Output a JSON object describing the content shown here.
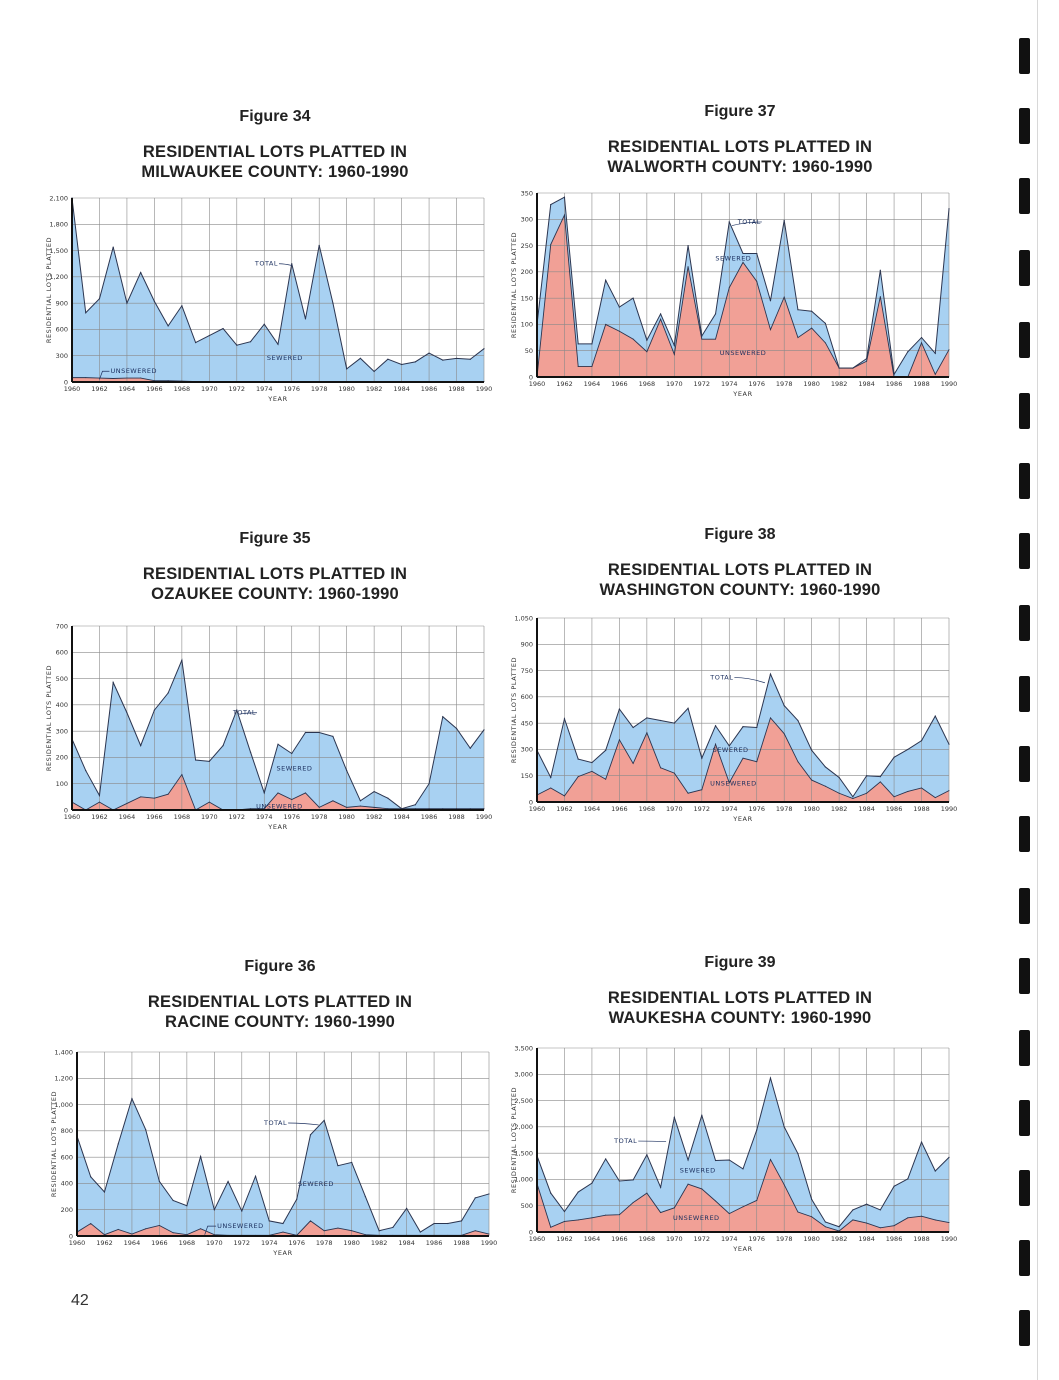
{
  "page": {
    "page_number": "42"
  },
  "colors": {
    "sewered": "#a8d1f2",
    "unsewered": "#f1a096",
    "line": "#2b3550",
    "grid": "#8a8a8a",
    "annotation": "#1b2f5e"
  },
  "chart_data": [
    {
      "id": "fig34",
      "figure_label": "Figure 34",
      "title_line1": "RESIDENTIAL LOTS PLATTED IN",
      "title_line2": "MILWAUKEE COUNTY: 1960-1990",
      "type": "area",
      "xlabel": "YEAR",
      "ylabel": "RESIDENTIAL LOTS PLATTED",
      "ylim": [
        0,
        2100
      ],
      "yticks": [
        "0",
        "300",
        "600",
        "900",
        "1,200",
        "1,500",
        "1,800",
        "2,100"
      ],
      "xticks": [
        "1960",
        "1962",
        "1964",
        "1966",
        "1968",
        "1970",
        "1972",
        "1974",
        "1976",
        "1978",
        "1980",
        "1982",
        "1984",
        "1986",
        "1988",
        "1990"
      ],
      "grid": true,
      "x": [
        1960,
        1961,
        1962,
        1963,
        1964,
        1965,
        1966,
        1967,
        1968,
        1969,
        1970,
        1971,
        1972,
        1973,
        1974,
        1975,
        1976,
        1977,
        1978,
        1979,
        1980,
        1981,
        1982,
        1983,
        1984,
        1985,
        1986,
        1987,
        1988,
        1989,
        1990
      ],
      "series": [
        {
          "name": "TOTAL",
          "values": [
            2100,
            790,
            950,
            1540,
            900,
            1250,
            920,
            640,
            870,
            450,
            530,
            610,
            420,
            460,
            660,
            430,
            1350,
            720,
            1560,
            900,
            150,
            270,
            120,
            260,
            200,
            230,
            330,
            250,
            270,
            260,
            380
          ]
        },
        {
          "name": "UNSEWERED",
          "values": [
            50,
            50,
            45,
            40,
            45,
            45,
            15,
            15,
            10,
            5,
            5,
            5,
            5,
            5,
            5,
            5,
            5,
            5,
            5,
            5,
            5,
            5,
            5,
            5,
            5,
            5,
            5,
            5,
            5,
            5,
            5
          ]
        }
      ],
      "annotations": {
        "total": "TOTAL",
        "sewered": "SEWERED",
        "unsewered": "UNSEWERED"
      }
    },
    {
      "id": "fig37",
      "figure_label": "Figure 37",
      "title_line1": "RESIDENTIAL LOTS PLATTED IN",
      "title_line2": "WALWORTH COUNTY: 1960-1990",
      "type": "area",
      "xlabel": "YEAR",
      "ylabel": "RESIDENTIAL LOTS PLATTED",
      "ylim": [
        0,
        350
      ],
      "yticks": [
        "0",
        "50",
        "100",
        "150",
        "200",
        "250",
        "300",
        "350"
      ],
      "xticks": [
        "1960",
        "1962",
        "1964",
        "1966",
        "1968",
        "1970",
        "1972",
        "1974",
        "1976",
        "1978",
        "1980",
        "1982",
        "1984",
        "1986",
        "1988",
        "1990"
      ],
      "grid": true,
      "x": [
        1960,
        1961,
        1962,
        1963,
        1964,
        1965,
        1966,
        1967,
        1968,
        1969,
        1970,
        1971,
        1972,
        1973,
        1974,
        1975,
        1976,
        1977,
        1978,
        1979,
        1980,
        1981,
        1982,
        1983,
        1984,
        1985,
        1986,
        1987,
        1988,
        1989,
        1990
      ],
      "series": [
        {
          "name": "TOTAL",
          "values": [
            100,
            328,
            342,
            63,
            63,
            184,
            133,
            150,
            70,
            120,
            60,
            250,
            78,
            120,
            295,
            235,
            235,
            145,
            298,
            128,
            125,
            102,
            17,
            17,
            35,
            203,
            5,
            48,
            75,
            45,
            320
          ]
        },
        {
          "name": "UNSEWERED",
          "values": [
            0,
            252,
            308,
            20,
            20,
            100,
            87,
            72,
            48,
            110,
            43,
            210,
            72,
            72,
            170,
            218,
            182,
            90,
            152,
            75,
            93,
            65,
            17,
            17,
            30,
            153,
            0,
            0,
            65,
            5,
            52
          ]
        }
      ],
      "annotations": {
        "total": "TOTAL",
        "sewered": "SEWERED",
        "unsewered": "UNSEWERED"
      }
    },
    {
      "id": "fig35",
      "figure_label": "Figure 35",
      "title_line1": "RESIDENTIAL LOTS PLATTED IN",
      "title_line2": "OZAUKEE COUNTY: 1960-1990",
      "type": "area",
      "xlabel": "YEAR",
      "ylabel": "RESIDENTIAL LOTS PLATTED",
      "ylim": [
        0,
        700
      ],
      "yticks": [
        "0",
        "100",
        "200",
        "300",
        "400",
        "500",
        "600",
        "700"
      ],
      "xticks": [
        "1960",
        "1962",
        "1964",
        "1966",
        "1968",
        "1970",
        "1972",
        "1974",
        "1976",
        "1978",
        "1980",
        "1982",
        "1984",
        "1986",
        "1988",
        "1990"
      ],
      "grid": true,
      "x": [
        1960,
        1961,
        1962,
        1963,
        1964,
        1965,
        1966,
        1967,
        1968,
        1969,
        1970,
        1971,
        1972,
        1973,
        1974,
        1975,
        1976,
        1977,
        1978,
        1979,
        1980,
        1981,
        1982,
        1983,
        1984,
        1985,
        1986,
        1987,
        1988,
        1989,
        1990
      ],
      "series": [
        {
          "name": "TOTAL",
          "values": [
            270,
            150,
            55,
            485,
            370,
            245,
            380,
            445,
            570,
            190,
            185,
            245,
            380,
            220,
            65,
            250,
            215,
            295,
            295,
            280,
            150,
            35,
            70,
            45,
            5,
            20,
            100,
            355,
            310,
            235,
            305
          ]
        },
        {
          "name": "UNSEWERED",
          "values": [
            30,
            0,
            30,
            0,
            25,
            50,
            45,
            60,
            135,
            0,
            30,
            0,
            0,
            5,
            5,
            65,
            40,
            65,
            10,
            35,
            10,
            15,
            10,
            5,
            5,
            5,
            5,
            5,
            5,
            5,
            5
          ]
        }
      ],
      "annotations": {
        "total": "TOTAL",
        "sewered": "SEWERED",
        "unsewered": "UNSEWERED"
      }
    },
    {
      "id": "fig38",
      "figure_label": "Figure 38",
      "title_line1": "RESIDENTIAL LOTS PLATTED IN",
      "title_line2": "WASHINGTON COUNTY: 1960-1990",
      "type": "area",
      "xlabel": "YEAR",
      "ylabel": "RESIDENTIAL LOTS PLATTED",
      "ylim": [
        0,
        1050
      ],
      "yticks": [
        "0",
        "150",
        "300",
        "450",
        "600",
        "750",
        "900",
        "1,050"
      ],
      "xticks": [
        "1960",
        "1962",
        "1964",
        "1966",
        "1968",
        "1970",
        "1972",
        "1974",
        "1976",
        "1978",
        "1980",
        "1982",
        "1984",
        "1986",
        "1988",
        "1990"
      ],
      "grid": true,
      "x": [
        1960,
        1961,
        1962,
        1963,
        1964,
        1965,
        1966,
        1967,
        1968,
        1969,
        1970,
        1971,
        1972,
        1973,
        1974,
        1975,
        1976,
        1977,
        1978,
        1979,
        1980,
        1981,
        1982,
        1983,
        1984,
        1985,
        1986,
        1987,
        1988,
        1989,
        1990
      ],
      "series": [
        {
          "name": "TOTAL",
          "values": [
            295,
            140,
            475,
            245,
            225,
            295,
            530,
            425,
            480,
            465,
            450,
            535,
            250,
            435,
            320,
            430,
            425,
            730,
            550,
            465,
            295,
            200,
            140,
            30,
            150,
            145,
            255,
            300,
            350,
            490,
            330
          ]
        },
        {
          "name": "UNSEWERED",
          "values": [
            40,
            80,
            35,
            145,
            175,
            130,
            355,
            220,
            395,
            195,
            165,
            50,
            70,
            330,
            110,
            250,
            230,
            480,
            390,
            230,
            125,
            90,
            50,
            20,
            50,
            115,
            30,
            60,
            80,
            25,
            65
          ]
        }
      ],
      "annotations": {
        "total": "TOTAL",
        "sewered": "SEWERED",
        "unsewered": "UNSEWERED"
      }
    },
    {
      "id": "fig36",
      "figure_label": "Figure 36",
      "title_line1": "RESIDENTIAL LOTS PLATTED IN",
      "title_line2": "RACINE COUNTY: 1960-1990",
      "type": "area",
      "xlabel": "YEAR",
      "ylabel": "RESIDENTIAL LOTS PLATTED",
      "ylim": [
        0,
        1400
      ],
      "yticks": [
        "0",
        "200",
        "400",
        "600",
        "800",
        "1,000",
        "1,200",
        "1,400"
      ],
      "xticks": [
        "1960",
        "1962",
        "1964",
        "1966",
        "1968",
        "1970",
        "1972",
        "1974",
        "1976",
        "1978",
        "1980",
        "1982",
        "1984",
        "1986",
        "1988",
        "1990"
      ],
      "grid": true,
      "x": [
        1960,
        1961,
        1962,
        1963,
        1964,
        1965,
        1966,
        1967,
        1968,
        1969,
        1970,
        1971,
        1972,
        1973,
        1974,
        1975,
        1976,
        1977,
        1978,
        1979,
        1980,
        1981,
        1982,
        1983,
        1984,
        1985,
        1986,
        1987,
        1988,
        1989,
        1990
      ],
      "series": [
        {
          "name": "TOTAL",
          "values": [
            760,
            450,
            335,
            700,
            1045,
            810,
            415,
            270,
            230,
            605,
            200,
            415,
            190,
            455,
            115,
            95,
            280,
            770,
            880,
            535,
            560,
            300,
            40,
            65,
            210,
            30,
            95,
            95,
            115,
            290,
            320
          ]
        },
        {
          "name": "UNSEWERED",
          "values": [
            30,
            95,
            10,
            50,
            15,
            55,
            80,
            25,
            10,
            55,
            10,
            5,
            5,
            5,
            5,
            30,
            5,
            115,
            40,
            60,
            40,
            10,
            5,
            5,
            5,
            5,
            5,
            5,
            5,
            40,
            15
          ]
        }
      ],
      "annotations": {
        "total": "TOTAL",
        "sewered": "SEWERED",
        "unsewered": "UNSEWERED"
      }
    },
    {
      "id": "fig39",
      "figure_label": "Figure 39",
      "title_line1": "RESIDENTIAL LOTS PLATTED IN",
      "title_line2": "WAUKESHA COUNTY: 1960-1990",
      "type": "area",
      "xlabel": "YEAR",
      "ylabel": "RESIDENTIAL LOTS PLATTED",
      "ylim": [
        0,
        3500
      ],
      "yticks": [
        "0",
        "500",
        "1,000",
        "1,500",
        "2,000",
        "2,500",
        "3,000",
        "3,500"
      ],
      "xticks": [
        "1960",
        "1962",
        "1964",
        "1966",
        "1968",
        "1970",
        "1972",
        "1974",
        "1976",
        "1978",
        "1980",
        "1982",
        "1984",
        "1986",
        "1988",
        "1990"
      ],
      "grid": true,
      "x": [
        1960,
        1961,
        1962,
        1963,
        1964,
        1965,
        1966,
        1967,
        1968,
        1969,
        1970,
        1971,
        1972,
        1973,
        1974,
        1975,
        1976,
        1977,
        1978,
        1979,
        1980,
        1981,
        1982,
        1983,
        1984,
        1985,
        1986,
        1987,
        1988,
        1989,
        1990
      ],
      "series": [
        {
          "name": "TOTAL",
          "values": [
            1450,
            740,
            390,
            760,
            930,
            1390,
            970,
            990,
            1470,
            850,
            2180,
            1370,
            2220,
            1360,
            1370,
            1200,
            1940,
            2930,
            2000,
            1490,
            620,
            190,
            100,
            420,
            530,
            420,
            870,
            1010,
            1710,
            1160,
            1420
          ]
        },
        {
          "name": "UNSEWERED",
          "values": [
            920,
            90,
            200,
            230,
            270,
            320,
            330,
            560,
            740,
            370,
            460,
            910,
            820,
            590,
            350,
            480,
            600,
            1380,
            900,
            380,
            290,
            100,
            20,
            230,
            170,
            80,
            120,
            270,
            300,
            230,
            180
          ]
        }
      ],
      "annotations": {
        "total": "TOTAL",
        "sewered": "SEWERED",
        "unsewered": "UNSEWERED"
      }
    }
  ]
}
